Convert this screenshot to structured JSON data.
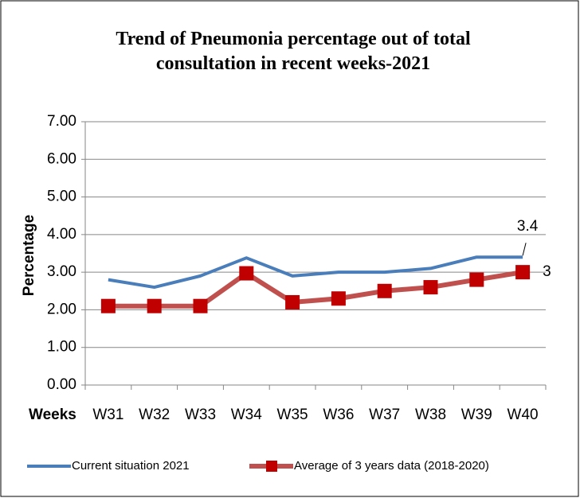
{
  "chart_data": {
    "type": "line",
    "title": "Trend of Pneumonia percentage out of total consultation in recent weeks-2021",
    "xlabel": "Weeks",
    "ylabel": "Percentage",
    "categories": [
      "W31",
      "W32",
      "W33",
      "W34",
      "W35",
      "W36",
      "W37",
      "W38",
      "W39",
      "W40"
    ],
    "series": [
      {
        "name": "Current situation 2021",
        "color": "#4a7ebb",
        "marker": "none",
        "values": [
          2.8,
          2.6,
          2.9,
          3.38,
          2.9,
          3.0,
          3.0,
          3.1,
          3.4,
          3.4
        ],
        "value_labels": [
          null,
          null,
          null,
          null,
          null,
          null,
          null,
          null,
          null,
          "3.4"
        ]
      },
      {
        "name": "Average of 3 years data (2018-2020)",
        "color": "#c0504d",
        "marker": "square",
        "values": [
          2.1,
          2.1,
          2.1,
          2.97,
          2.2,
          2.3,
          2.5,
          2.6,
          2.8,
          3.0
        ],
        "value_labels": [
          null,
          null,
          null,
          null,
          null,
          null,
          null,
          null,
          null,
          "3"
        ]
      }
    ],
    "ylim": [
      0,
      7
    ],
    "yticks": [
      {
        "value": 0,
        "label": "0.00"
      },
      {
        "value": 1,
        "label": "1.00"
      },
      {
        "value": 2,
        "label": "2.00"
      },
      {
        "value": 3,
        "label": "3.00"
      },
      {
        "value": 4,
        "label": "4.00"
      },
      {
        "value": 5,
        "label": "5.00"
      },
      {
        "value": 6,
        "label": "6.00"
      },
      {
        "value": 7,
        "label": "7.00"
      }
    ],
    "grid": true,
    "legend": "bottom"
  }
}
